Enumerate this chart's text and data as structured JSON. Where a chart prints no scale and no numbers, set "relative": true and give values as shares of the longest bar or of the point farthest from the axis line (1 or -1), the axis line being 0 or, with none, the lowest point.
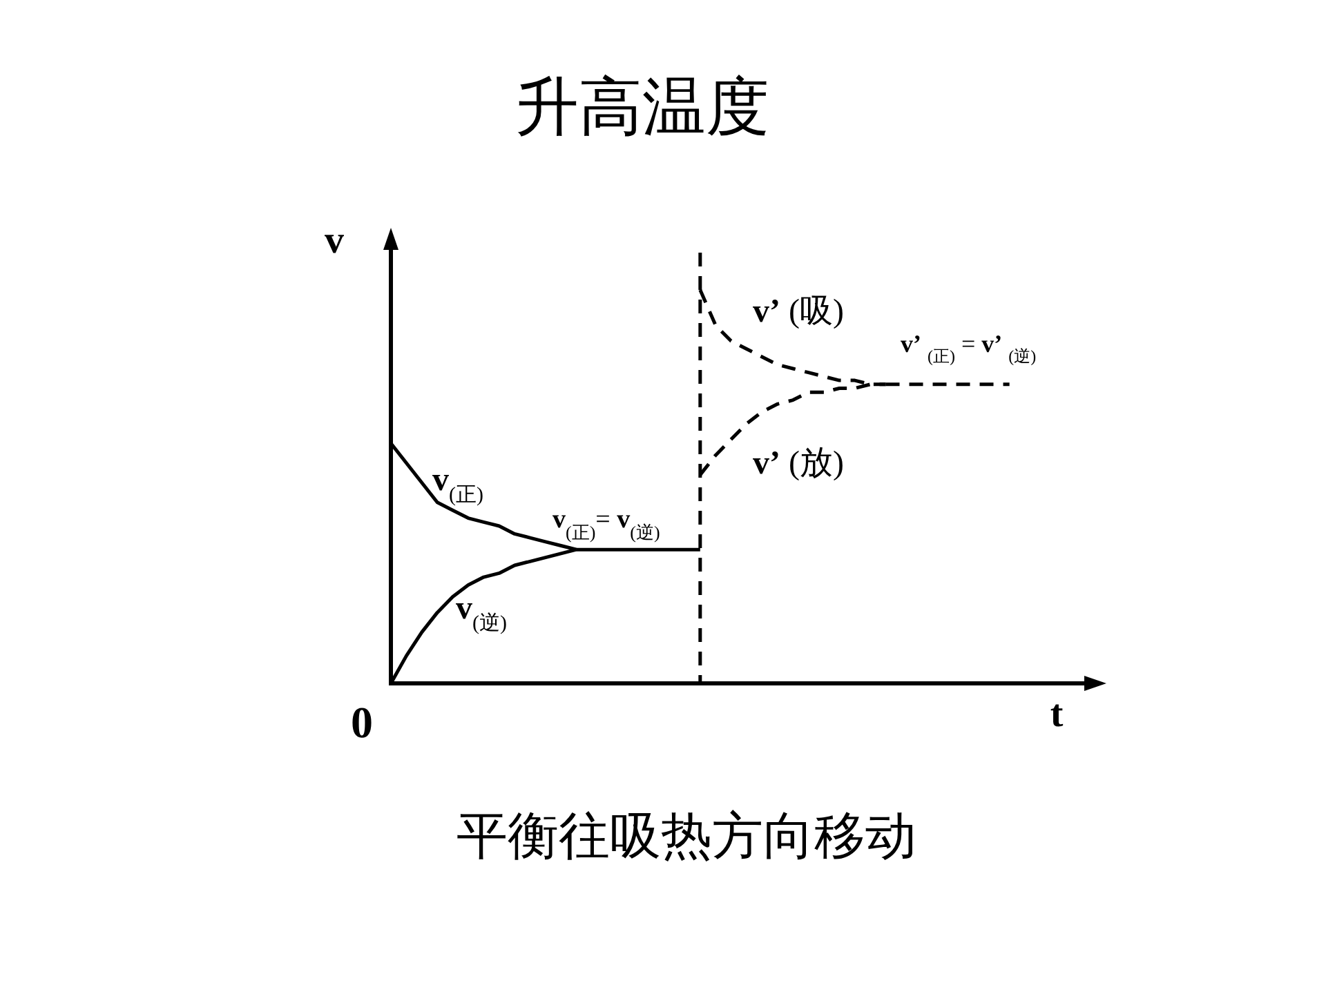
{
  "chart_data": {
    "type": "line",
    "title": "升高温度",
    "xlabel": "t",
    "ylabel": "v",
    "relative": true,
    "categories": [
      null,
      null,
      null,
      null,
      null,
      null,
      null,
      null,
      null,
      null,
      null,
      null,
      null,
      null,
      null,
      null,
      null,
      null,
      null,
      null,
      null,
      null,
      null,
      null,
      null,
      null,
      null,
      null,
      null,
      null,
      null,
      null,
      null,
      null,
      null,
      null,
      null,
      null,
      null,
      null,
      null,
      null,
      null,
      null,
      null,
      null,
      null
    ],
    "series": [
      {
        "name": "**v**$_{(正)}$",
        "color": "#000000",
        "line_style": "solid",
        "values": [
          0.61,
          0.56,
          0.51,
          0.46,
          0.44,
          0.42,
          0.41,
          0.4,
          0.38,
          0.37,
          0.36,
          0.35,
          0.34,
          null,
          null,
          null,
          null,
          null,
          null,
          null,
          null,
          null,
          null,
          null,
          null,
          null,
          null,
          null,
          null,
          null,
          null,
          null,
          null,
          null,
          null,
          null,
          null,
          null,
          null,
          null,
          null,
          null,
          null,
          null,
          null,
          null,
          null
        ]
      },
      {
        "name": "**v**$_{(逆)}$",
        "color": "#000000",
        "line_style": "solid",
        "values": [
          0,
          0.07,
          0.13,
          0.18,
          0.22,
          0.25,
          0.27,
          0.28,
          0.3,
          0.31,
          0.32,
          0.33,
          0.34,
          null,
          null,
          null,
          null,
          null,
          null,
          null,
          null,
          null,
          null,
          null,
          null,
          null,
          null,
          null,
          null,
          null,
          null,
          null,
          null,
          null,
          null,
          null,
          null,
          null,
          null,
          null,
          null,
          null,
          null,
          null,
          null,
          null,
          null
        ]
      },
      {
        "color": "#000000",
        "line_style": "solid",
        "values": [
          null,
          null,
          null,
          null,
          null,
          null,
          null,
          null,
          null,
          null,
          null,
          null,
          0.34,
          0.34,
          0.34,
          0.34,
          0.34,
          0.34,
          0.34,
          0.34,
          0.34,
          null,
          null,
          null,
          null,
          null,
          null,
          null,
          null,
          null,
          null,
          null,
          null,
          null,
          null,
          null,
          null,
          null,
          null,
          null,
          null,
          null,
          null,
          null,
          null,
          null,
          null
        ]
      },
      {
        "name": "**v’** (吸)",
        "color": "#000000",
        "line_style": "dashed",
        "values": [
          null,
          null,
          null,
          null,
          null,
          null,
          null,
          null,
          null,
          null,
          null,
          null,
          null,
          null,
          null,
          null,
          null,
          null,
          null,
          null,
          1,
          0.91,
          0.87,
          0.85,
          0.83,
          0.81,
          0.8,
          0.79,
          0.78,
          0.77,
          0.77,
          0.76,
          0.76,
          null,
          null,
          null,
          null,
          null,
          null,
          null,
          null,
          null,
          null,
          null,
          null,
          null,
          null
        ]
      },
      {
        "name": "**v’** (放)",
        "color": "#000000",
        "line_style": "dashed",
        "values": [
          null,
          null,
          null,
          null,
          null,
          null,
          null,
          null,
          null,
          null,
          null,
          null,
          null,
          null,
          null,
          null,
          null,
          null,
          null,
          null,
          0.53,
          0.58,
          0.62,
          0.66,
          0.69,
          0.71,
          0.72,
          0.74,
          0.74,
          0.75,
          0.75,
          0.76,
          0.76,
          null,
          null,
          null,
          null,
          null,
          null,
          null,
          null,
          null,
          null,
          null,
          null,
          null,
          null
        ]
      },
      {
        "color": "#000000",
        "line_style": "dashed",
        "values": [
          null,
          null,
          null,
          null,
          null,
          null,
          null,
          null,
          null,
          null,
          null,
          null,
          null,
          null,
          null,
          null,
          null,
          null,
          null,
          null,
          null,
          null,
          null,
          null,
          null,
          null,
          null,
          null,
          null,
          null,
          null,
          null,
          0.76,
          0.76,
          0.76,
          0.76,
          0.76,
          0.76,
          0.76,
          0.76,
          0.76,
          null,
          null,
          null,
          null,
          null,
          null
        ]
      }
    ],
    "annotations": [
      "0",
      "**v**$_{(正)}$= **v**$_{(逆)}$",
      "**v’** $_{(正)}$ = **v’** $_{(逆)}$",
      "平衡往吸热方向移动"
    ]
  }
}
